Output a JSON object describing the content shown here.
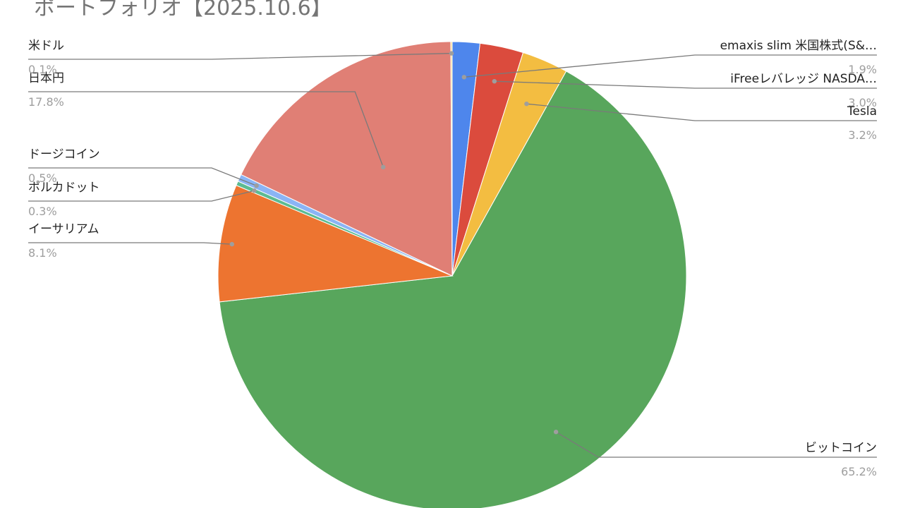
{
  "chart_data": {
    "type": "pie",
    "title": "ポートフォリオ【2025.10.6】",
    "slices": [
      {
        "label": "emaxis slim 米国株式(S&…",
        "value": 1.9,
        "pct": "1.9%",
        "color": "#4e86ec"
      },
      {
        "label": "iFreeレバレッジ NASDA…",
        "value": 3.0,
        "pct": "3.0%",
        "color": "#db4b3d"
      },
      {
        "label": "Tesla",
        "value": 3.2,
        "pct": "3.2%",
        "color": "#f3bd41"
      },
      {
        "label": "ビットコイン",
        "value": 65.2,
        "pct": "65.2%",
        "color": "#58a65c"
      },
      {
        "label": "イーサリアム",
        "value": 8.1,
        "pct": "8.1%",
        "color": "#ed7430"
      },
      {
        "label": "ポルカドット",
        "value": 0.3,
        "pct": "0.3%",
        "color": "#5cbb92"
      },
      {
        "label": "ドージコイン",
        "value": 0.5,
        "pct": "0.5%",
        "color": "#8ab4f5"
      },
      {
        "label": "日本円",
        "value": 17.8,
        "pct": "17.8%",
        "color": "#e07f75"
      },
      {
        "label": "米ドル",
        "value": 0.1,
        "pct": "0.1%",
        "color": "#f9d77a"
      }
    ]
  }
}
